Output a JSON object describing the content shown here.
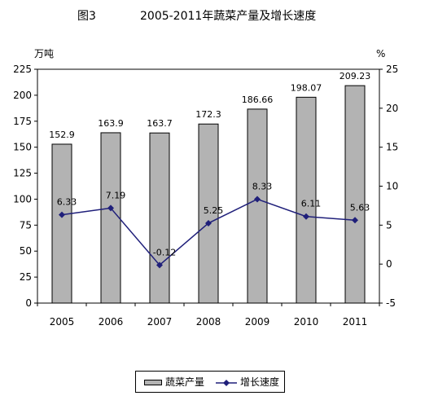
{
  "chart_data": {
    "type": "bar",
    "title": "2005-2011年蔬菜产量及增长速度",
    "figure_label": "图3",
    "ylabel_left": "万吨",
    "ylabel_right": "%",
    "categories": [
      "2005",
      "2006",
      "2007",
      "2008",
      "2009",
      "2010",
      "2011"
    ],
    "ylim_left": [
      0,
      225
    ],
    "yticks_left": [
      0,
      25,
      50,
      75,
      100,
      125,
      150,
      175,
      200,
      225
    ],
    "ylim_right": [
      -5,
      25
    ],
    "yticks_right": [
      -5,
      0,
      5,
      10,
      15,
      20,
      25
    ],
    "series": [
      {
        "name": "蔬菜产量",
        "type": "bar",
        "axis": "left",
        "values": [
          152.9,
          163.9,
          163.7,
          172.3,
          186.66,
          198.07,
          209.23
        ],
        "labels": [
          "152.9",
          "163.9",
          "163.7",
          "172.3",
          "186.66",
          "198.07",
          "209.23"
        ],
        "color": "#b3b3b3"
      },
      {
        "name": "增长速度",
        "type": "line",
        "axis": "right",
        "values": [
          6.33,
          7.19,
          -0.12,
          5.25,
          8.33,
          6.11,
          5.63
        ],
        "labels": [
          "6.33",
          "7.19",
          "-0.12",
          "5.25",
          "8.33",
          "6.11",
          "5.63"
        ],
        "color": "#1f1f7a"
      }
    ],
    "grid": false,
    "legend_position": "bottom"
  },
  "legend": {
    "bar_label": "蔬菜产量",
    "line_label": "增长速度"
  }
}
